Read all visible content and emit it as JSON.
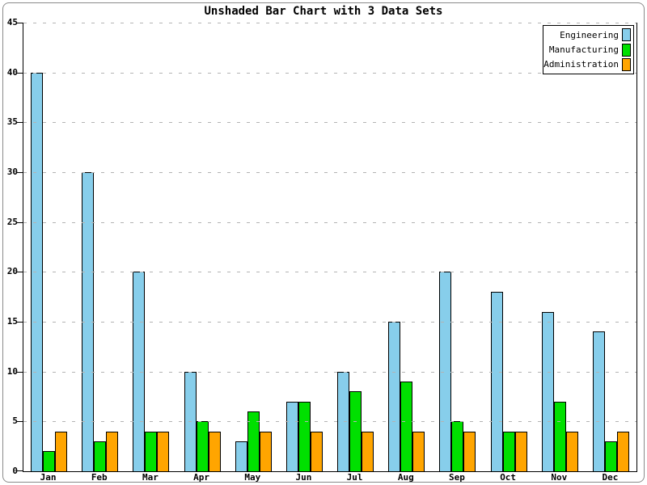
{
  "title": "Unshaded Bar Chart with 3 Data Sets",
  "chart_data": {
    "type": "bar",
    "title": "Unshaded Bar Chart with 3 Data Sets",
    "categories": [
      "Jan",
      "Feb",
      "Mar",
      "Apr",
      "May",
      "Jun",
      "Jul",
      "Aug",
      "Sep",
      "Oct",
      "Nov",
      "Dec"
    ],
    "series": [
      {
        "name": "Engineering",
        "color": "#87CEEB",
        "values": [
          40,
          30,
          20,
          10,
          3,
          7,
          10,
          15,
          20,
          18,
          16,
          14
        ]
      },
      {
        "name": "Manufacturing",
        "color": "#00E000",
        "values": [
          2,
          3,
          4,
          5,
          6,
          7,
          8,
          9,
          5,
          4,
          7,
          3
        ]
      },
      {
        "name": "Administration",
        "color": "#FFA500",
        "values": [
          4,
          4,
          4,
          4,
          4,
          4,
          4,
          4,
          4,
          4,
          4,
          4
        ]
      }
    ],
    "xlabel": "",
    "ylabel": "",
    "ylim": [
      0,
      45
    ],
    "yticks": [
      0,
      5,
      10,
      15,
      20,
      25,
      30,
      35,
      40,
      45
    ],
    "grid": "horizontal-dashed",
    "legend_position": "top-right"
  },
  "colors": {
    "bar_outline": "#000000",
    "gridline": "#b3b3b3",
    "frame_border": "#8a8a8a",
    "background": "#ffffff"
  }
}
